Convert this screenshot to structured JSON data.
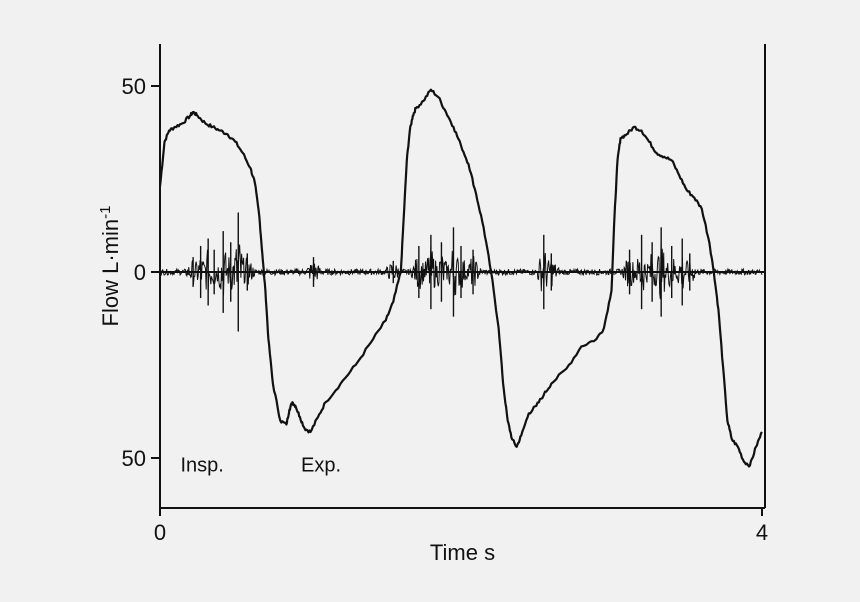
{
  "chart_data": {
    "type": "line",
    "title": "",
    "xlabel": "Time  s",
    "ylabel": "Flow  L·min",
    "ylabel_superscript": "-1",
    "xlim": [
      0,
      4
    ],
    "ylim": [
      -55,
      62
    ],
    "x_ticks": [
      {
        "value": 0,
        "label": "0"
      },
      {
        "value": 4,
        "label": "4"
      }
    ],
    "y_ticks": [
      {
        "value": 50,
        "label": "50"
      },
      {
        "value": 0,
        "label": "0"
      },
      {
        "value": -50,
        "label": "50"
      }
    ],
    "grid": false,
    "legend": "none",
    "annotations": [
      {
        "text": "Insp.",
        "x": 0.28,
        "y": -51
      },
      {
        "text": "Exp.",
        "x": 1.07,
        "y": -51
      }
    ],
    "series": [
      {
        "role": "flow",
        "x": [
          0.0,
          0.03,
          0.06,
          0.1,
          0.15,
          0.2,
          0.22,
          0.25,
          0.3,
          0.35,
          0.4,
          0.45,
          0.5,
          0.55,
          0.6,
          0.63,
          0.66,
          0.68,
          0.7,
          0.72,
          0.75,
          0.8,
          0.84,
          0.86,
          0.88,
          0.9,
          0.93,
          0.96,
          1.0,
          1.05,
          1.1,
          1.2,
          1.3,
          1.4,
          1.5,
          1.55,
          1.6,
          1.62,
          1.64,
          1.66,
          1.68,
          1.7,
          1.75,
          1.8,
          1.85,
          1.9,
          1.95,
          2.0,
          2.05,
          2.1,
          2.15,
          2.2,
          2.25,
          2.28,
          2.31,
          2.34,
          2.37,
          2.4,
          2.45,
          2.5,
          2.55,
          2.6,
          2.7,
          2.8,
          2.9,
          2.95,
          3.0,
          3.02,
          3.04,
          3.06,
          3.1,
          3.15,
          3.2,
          3.25,
          3.3,
          3.35,
          3.4,
          3.45,
          3.5,
          3.55,
          3.6,
          3.65,
          3.68,
          3.71,
          3.74,
          3.77,
          3.8,
          3.84,
          3.88,
          3.92,
          3.96,
          4.0
        ],
        "y": [
          23,
          35,
          38,
          39,
          40,
          42,
          43,
          42,
          40,
          39,
          38,
          37,
          35,
          32,
          28,
          24,
          15,
          5,
          -5,
          -18,
          -30,
          -40,
          -41,
          -37,
          -35,
          -36,
          -39,
          -42,
          -43,
          -39,
          -35,
          -30,
          -25,
          -19,
          -13,
          -8,
          0,
          15,
          30,
          38,
          42,
          44,
          46,
          49,
          47,
          43,
          39,
          34,
          29,
          21,
          12,
          0,
          -15,
          -30,
          -40,
          -45,
          -47,
          -44,
          -38,
          -36,
          -33,
          -30,
          -26,
          -20,
          -18,
          -15,
          -5,
          15,
          30,
          36,
          37,
          39,
          38,
          35,
          32,
          31,
          30,
          26,
          22,
          20,
          17,
          8,
          0,
          -10,
          -25,
          -40,
          -45,
          -47,
          -51,
          -52,
          -47,
          -43
        ]
      },
      {
        "role": "sound",
        "description_key": "high-frequency lung sound trace around zero",
        "bursts": [
          {
            "x": 0.22,
            "amp": 4
          },
          {
            "x": 0.27,
            "amp": 7
          },
          {
            "x": 0.32,
            "amp": 9
          },
          {
            "x": 0.36,
            "amp": 6
          },
          {
            "x": 0.42,
            "amp": 11
          },
          {
            "x": 0.47,
            "amp": 8
          },
          {
            "x": 0.52,
            "amp": 16
          },
          {
            "x": 0.58,
            "amp": 5
          },
          {
            "x": 1.02,
            "amp": 4
          },
          {
            "x": 1.55,
            "amp": 3
          },
          {
            "x": 1.72,
            "amp": 7
          },
          {
            "x": 1.8,
            "amp": 10
          },
          {
            "x": 1.87,
            "amp": 8
          },
          {
            "x": 1.95,
            "amp": 12
          },
          {
            "x": 2.0,
            "amp": 7
          },
          {
            "x": 2.08,
            "amp": 6
          },
          {
            "x": 2.55,
            "amp": 10
          },
          {
            "x": 2.6,
            "amp": 5
          },
          {
            "x": 3.12,
            "amp": 6
          },
          {
            "x": 3.2,
            "amp": 10
          },
          {
            "x": 3.27,
            "amp": 8
          },
          {
            "x": 3.33,
            "amp": 12
          },
          {
            "x": 3.4,
            "amp": 7
          },
          {
            "x": 3.47,
            "amp": 9
          },
          {
            "x": 3.52,
            "amp": 5
          }
        ]
      }
    ]
  }
}
